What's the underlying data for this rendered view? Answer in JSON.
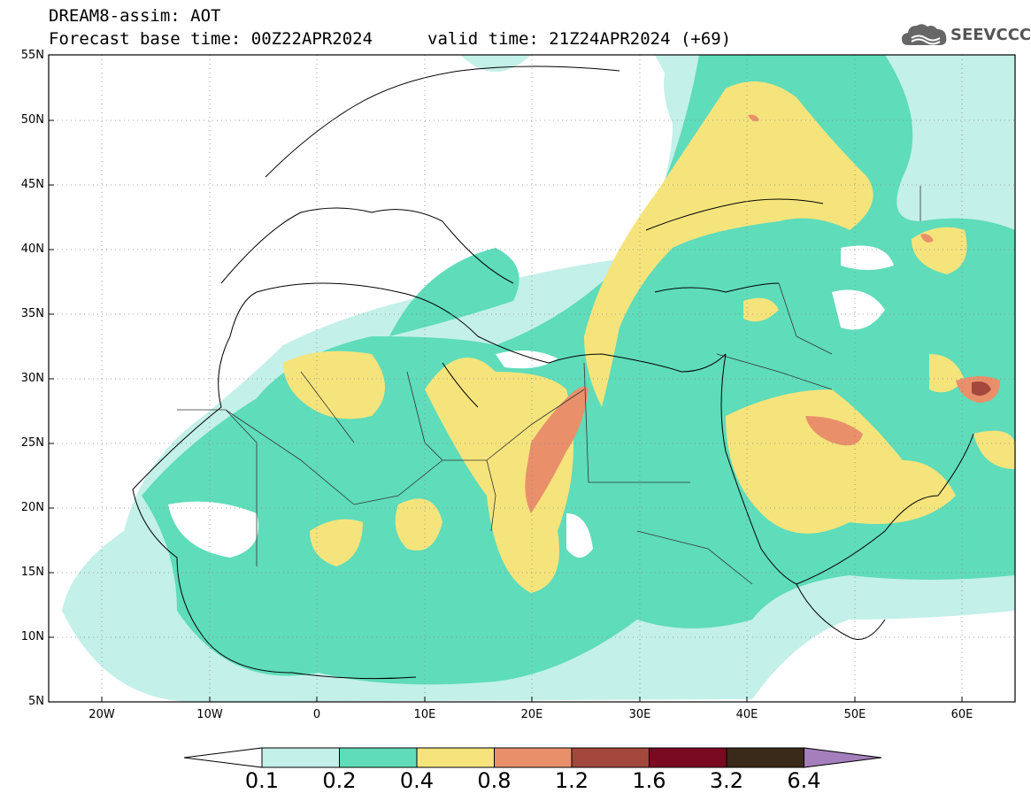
{
  "header": {
    "title_line1": "DREAM8-assim: AOT",
    "title_line2": "Forecast base time: 00Z22APR2024",
    "valid_time": "valid time: 21Z24APR2024 (+69)"
  },
  "logo": {
    "text": "SEEVCCC",
    "icon": "cloud-icon"
  },
  "map": {
    "lat_labels": [
      "55N",
      "50N",
      "45N",
      "40N",
      "35N",
      "30N",
      "25N",
      "20N",
      "15N",
      "10N",
      "5N"
    ],
    "lon_labels": [
      "20W",
      "10W",
      "0",
      "10E",
      "20E",
      "30E",
      "40E",
      "50E",
      "60E"
    ],
    "colors": {
      "c1": "#c3f0e9",
      "c2": "#5fdcba",
      "c3": "#f5e47c",
      "c4": "#e9906b",
      "c5": "#a4473c",
      "c6": "#7a0a22",
      "c7": "#3a2a19",
      "c8": "#a57fbc"
    }
  },
  "colorbar": {
    "labels": [
      "0.1",
      "0.2",
      "0.4",
      "0.8",
      "1.2",
      "1.6",
      "3.2",
      "6.4"
    ],
    "colors": [
      "#c3f0e9",
      "#5fdcba",
      "#f5e47c",
      "#e9906b",
      "#a4473c",
      "#7a0a22",
      "#3a2a19"
    ],
    "lower_arrow_color": "#ffffff",
    "upper_arrow_color": "#a57fbc"
  }
}
